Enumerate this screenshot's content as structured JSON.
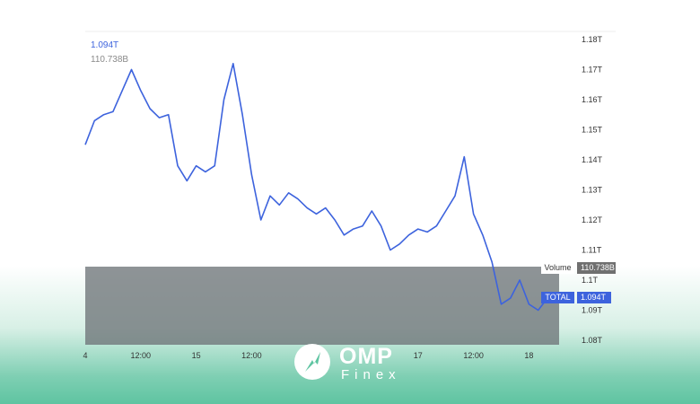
{
  "legend": {
    "total_value": "1.094T",
    "volume_value": "110.738B"
  },
  "tags": {
    "volume_label": "Volume",
    "volume_value": "110.738B",
    "total_label": "TOTAL",
    "total_value": "1.094T"
  },
  "brand": {
    "name": "OMP",
    "sub": "Finex"
  },
  "colors": {
    "line": "#3d63dd",
    "volume_area": "#6e7478",
    "grid": "#eeeeee",
    "bg_bottom": "#5ec4a1"
  },
  "chart_data": {
    "type": "line",
    "series": [
      {
        "name": "TOTAL",
        "x": [
          0,
          2,
          4,
          6,
          8,
          10,
          12,
          14,
          16,
          18,
          20,
          22,
          24,
          26,
          28,
          30,
          32,
          34,
          36,
          38,
          40,
          42,
          44,
          46,
          48,
          50,
          52,
          54,
          56,
          58,
          60,
          62,
          64,
          66,
          68,
          70,
          72,
          74,
          76,
          78,
          80,
          82,
          84,
          86,
          88,
          90,
          92,
          94,
          96,
          98,
          100
        ],
        "values": [
          1.145,
          1.153,
          1.155,
          1.156,
          1.163,
          1.17,
          1.163,
          1.157,
          1.154,
          1.155,
          1.138,
          1.133,
          1.138,
          1.136,
          1.138,
          1.16,
          1.172,
          1.155,
          1.135,
          1.12,
          1.128,
          1.125,
          1.129,
          1.127,
          1.124,
          1.122,
          1.124,
          1.12,
          1.115,
          1.117,
          1.118,
          1.123,
          1.118,
          1.11,
          1.112,
          1.115,
          1.117,
          1.116,
          1.118,
          1.123,
          1.128,
          1.141,
          1.122,
          1.115,
          1.106,
          1.092,
          1.094,
          1.1,
          1.092,
          1.09,
          1.094
        ]
      }
    ],
    "volume": {
      "name": "Volume",
      "value_label": "110.738B"
    },
    "x_ticks": [
      {
        "label": "4",
        "x": 0
      },
      {
        "label": "12:00",
        "x": 12
      },
      {
        "label": "15",
        "x": 24
      },
      {
        "label": "12:00",
        "x": 36
      },
      {
        "label": "17",
        "x": 72
      },
      {
        "label": "12:00",
        "x": 84
      },
      {
        "label": "18",
        "x": 96
      }
    ],
    "y_ticks": [
      "1.18T",
      "1.17T",
      "1.16T",
      "1.15T",
      "1.14T",
      "1.13T",
      "1.12T",
      "1.11T",
      "1.1T",
      "1.09T",
      "1.08T"
    ],
    "y_tick_values": [
      1.18,
      1.17,
      1.16,
      1.15,
      1.14,
      1.13,
      1.12,
      1.11,
      1.1,
      1.09,
      1.08
    ],
    "ylim": [
      1.08,
      1.18
    ],
    "xlim": [
      0,
      100
    ],
    "grid": true
  }
}
